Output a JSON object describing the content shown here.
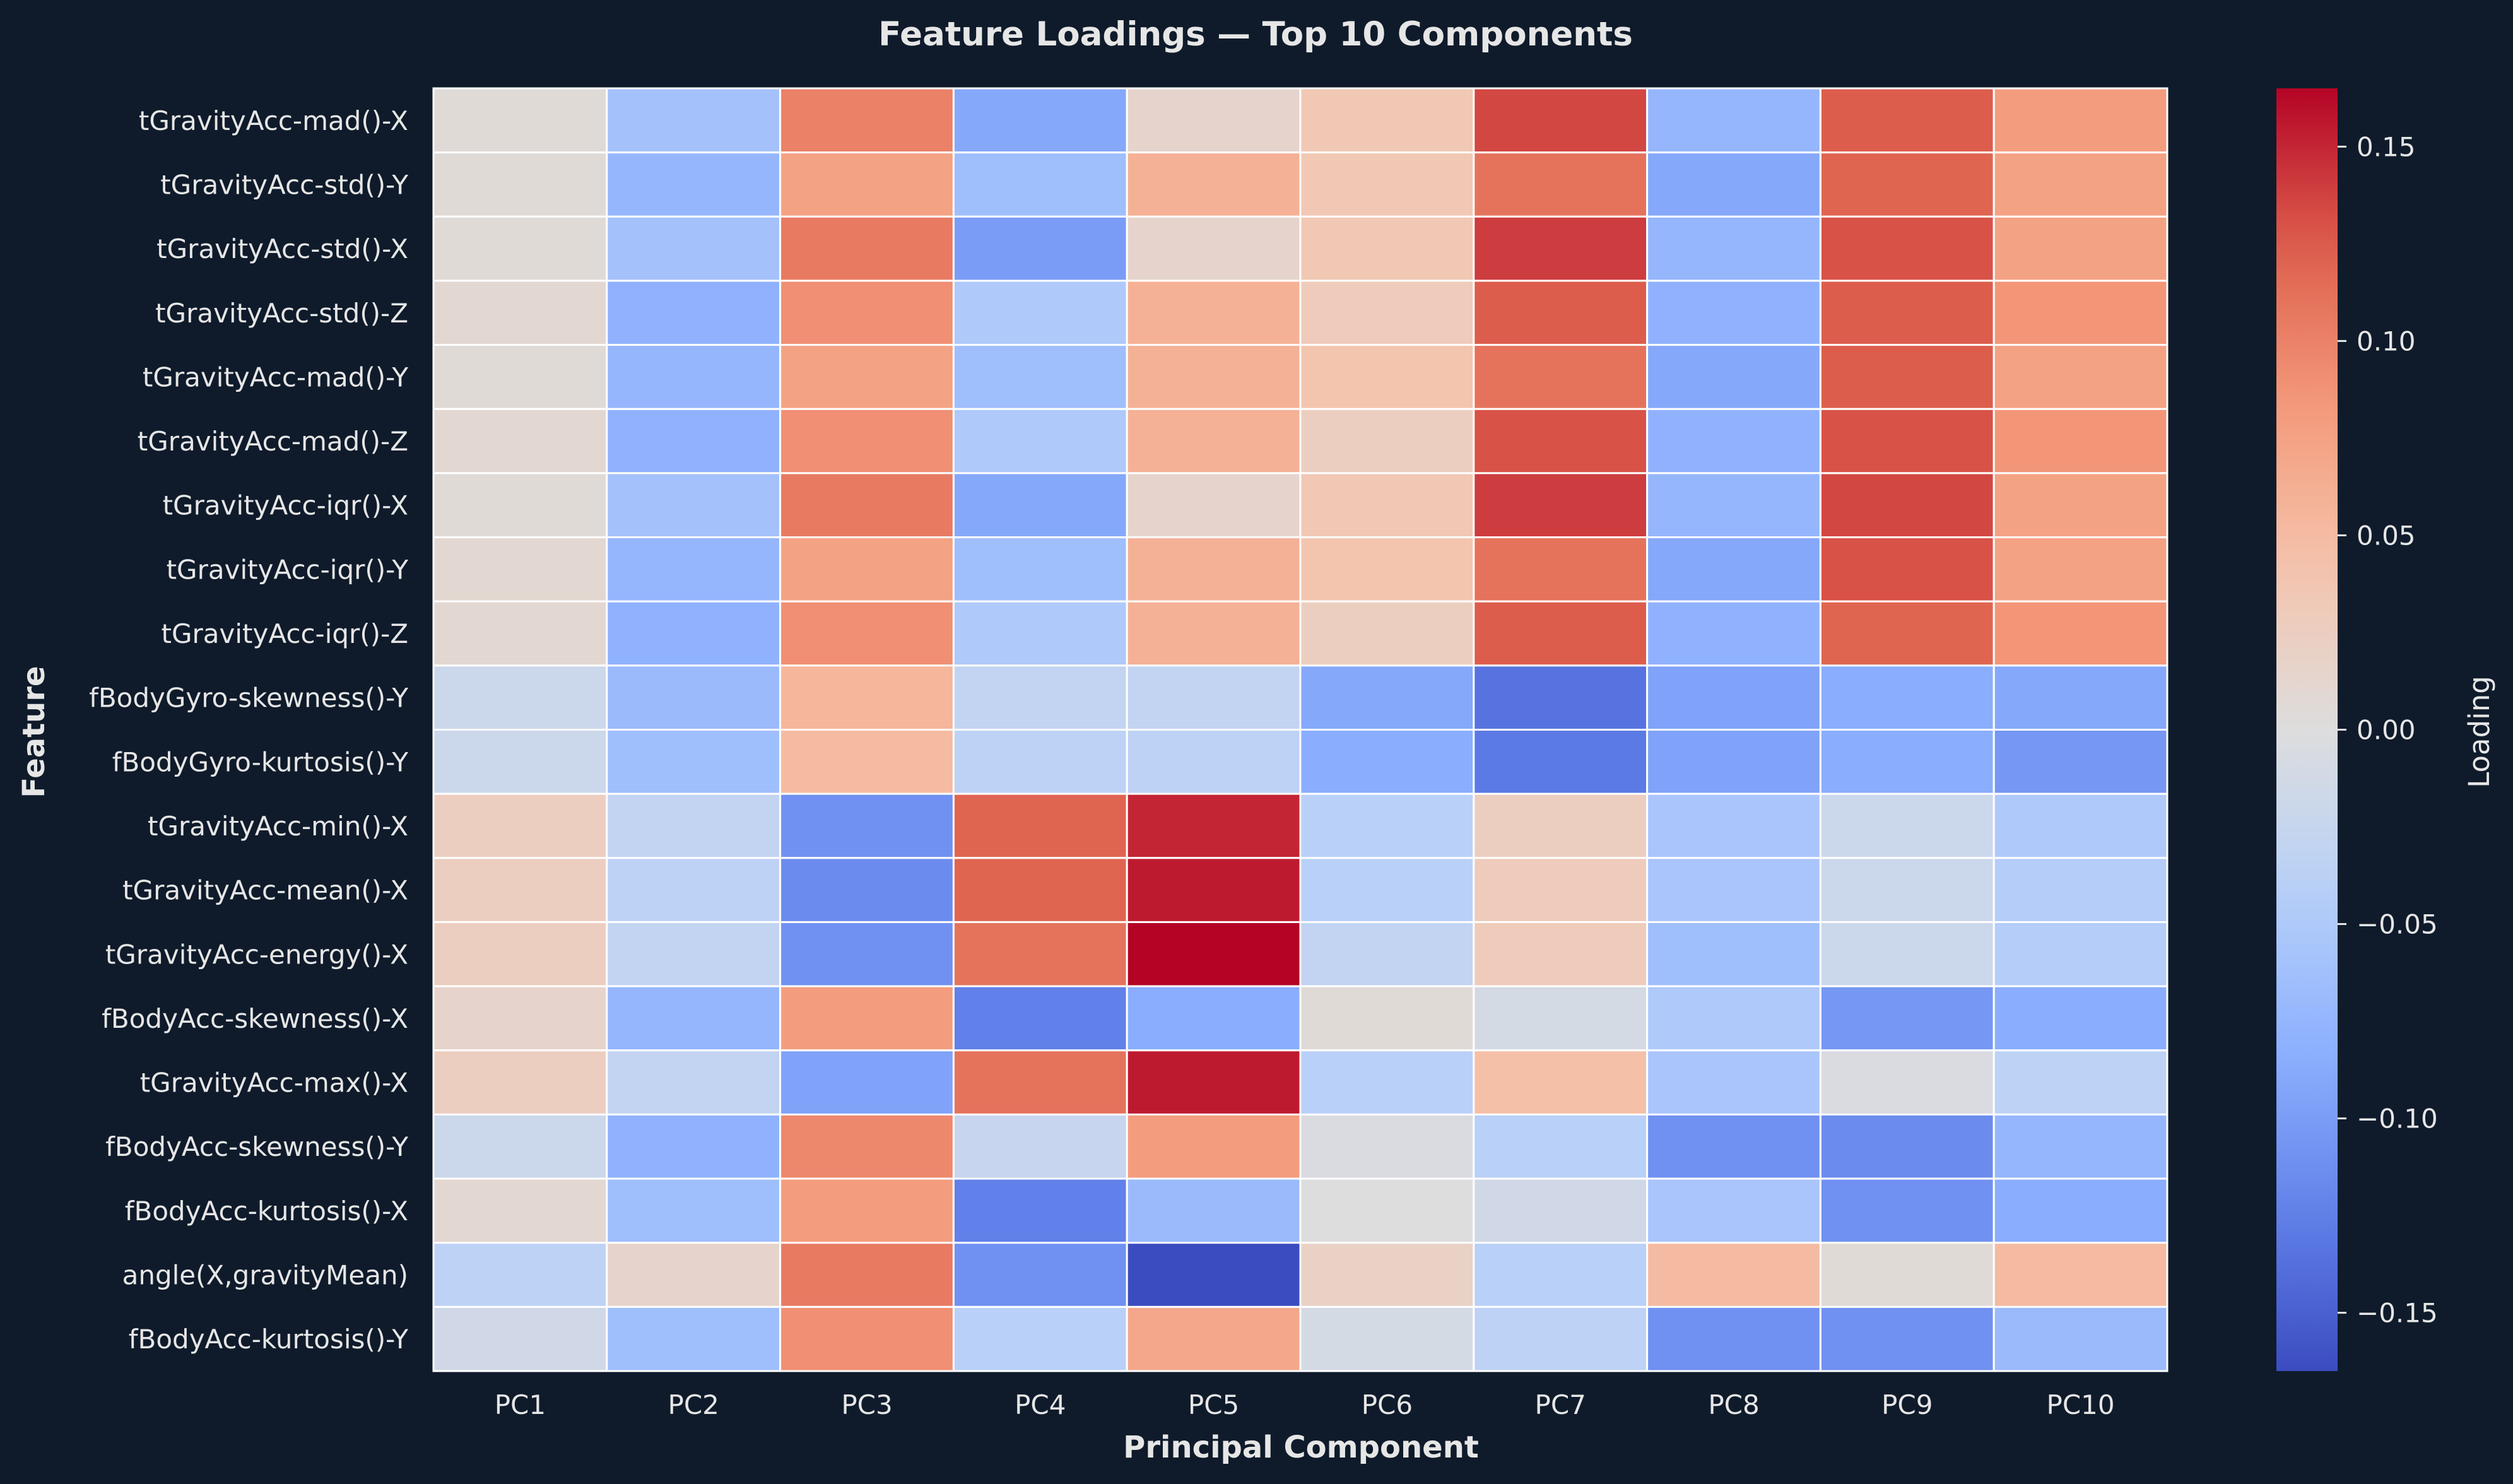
{
  "chart_data": {
    "type": "heatmap",
    "title": "Feature Loadings — Top 10 Components",
    "xlabel": "Principal Component",
    "ylabel": "Feature",
    "colorbar_label": "Loading",
    "colormap": "coolwarm",
    "vmin": -0.165,
    "vmax": 0.165,
    "colorbar_ticks": [
      0.15,
      0.1,
      0.05,
      0.0,
      -0.05,
      -0.1,
      -0.15
    ],
    "colorbar_tick_labels": [
      "0.15",
      "0.10",
      "0.05",
      "0.00",
      "−0.05",
      "−0.10",
      "−0.15"
    ],
    "columns": [
      "PC1",
      "PC2",
      "PC3",
      "PC4",
      "PC5",
      "PC6",
      "PC7",
      "PC8",
      "PC9",
      "PC10"
    ],
    "rows": [
      "tGravityAcc-mad()-X",
      "tGravityAcc-std()-Y",
      "tGravityAcc-std()-X",
      "tGravityAcc-std()-Z",
      "tGravityAcc-mad()-Y",
      "tGravityAcc-mad()-Z",
      "tGravityAcc-iqr()-X",
      "tGravityAcc-iqr()-Y",
      "tGravityAcc-iqr()-Z",
      "fBodyGyro-skewness()-Y",
      "fBodyGyro-kurtosis()-Y",
      "tGravityAcc-min()-X",
      "tGravityAcc-mean()-X",
      "tGravityAcc-energy()-X",
      "fBodyAcc-skewness()-X",
      "tGravityAcc-max()-X",
      "fBodyAcc-skewness()-Y",
      "fBodyAcc-kurtosis()-X",
      "angle(X,gravityMean)",
      "fBodyAcc-kurtosis()-Y"
    ],
    "values": [
      [
        0.005,
        -0.06,
        0.1,
        -0.09,
        0.015,
        0.035,
        0.135,
        -0.075,
        0.125,
        0.08
      ],
      [
        0.005,
        -0.075,
        0.075,
        -0.065,
        0.06,
        0.035,
        0.11,
        -0.09,
        0.12,
        0.075
      ],
      [
        0.005,
        -0.06,
        0.105,
        -0.1,
        0.015,
        0.035,
        0.14,
        -0.075,
        0.13,
        0.075
      ],
      [
        0.01,
        -0.08,
        0.09,
        -0.05,
        0.06,
        0.03,
        0.125,
        -0.08,
        0.125,
        0.085
      ],
      [
        0.005,
        -0.075,
        0.075,
        -0.065,
        0.06,
        0.04,
        0.11,
        -0.09,
        0.125,
        0.075
      ],
      [
        0.01,
        -0.08,
        0.09,
        -0.05,
        0.06,
        0.025,
        0.13,
        -0.08,
        0.13,
        0.085
      ],
      [
        0.005,
        -0.06,
        0.105,
        -0.09,
        0.015,
        0.035,
        0.14,
        -0.075,
        0.135,
        0.075
      ],
      [
        0.01,
        -0.075,
        0.075,
        -0.065,
        0.06,
        0.04,
        0.11,
        -0.09,
        0.13,
        0.075
      ],
      [
        0.01,
        -0.08,
        0.09,
        -0.05,
        0.06,
        0.025,
        0.125,
        -0.08,
        0.12,
        0.085
      ],
      [
        -0.02,
        -0.07,
        0.055,
        -0.03,
        -0.03,
        -0.09,
        -0.135,
        -0.095,
        -0.085,
        -0.09
      ],
      [
        -0.02,
        -0.065,
        0.05,
        -0.035,
        -0.035,
        -0.085,
        -0.13,
        -0.095,
        -0.085,
        -0.105
      ],
      [
        0.025,
        -0.03,
        -0.11,
        0.12,
        0.15,
        -0.04,
        0.025,
        -0.055,
        -0.02,
        -0.05
      ],
      [
        0.025,
        -0.035,
        -0.115,
        0.12,
        0.155,
        -0.04,
        0.03,
        -0.055,
        -0.02,
        -0.045
      ],
      [
        0.025,
        -0.03,
        -0.11,
        0.11,
        0.165,
        -0.03,
        0.03,
        -0.065,
        -0.02,
        -0.045
      ],
      [
        0.015,
        -0.075,
        0.08,
        -0.125,
        -0.085,
        0.005,
        -0.01,
        -0.05,
        -0.105,
        -0.085
      ],
      [
        0.025,
        -0.03,
        -0.095,
        0.11,
        0.155,
        -0.04,
        0.045,
        -0.055,
        -0.005,
        -0.035
      ],
      [
        -0.02,
        -0.08,
        0.095,
        -0.025,
        0.08,
        -0.005,
        -0.04,
        -0.11,
        -0.115,
        -0.075
      ],
      [
        0.01,
        -0.065,
        0.08,
        -0.125,
        -0.07,
        0.0,
        -0.015,
        -0.055,
        -0.11,
        -0.085
      ],
      [
        -0.035,
        0.015,
        0.105,
        -0.11,
        -0.165,
        0.02,
        -0.04,
        0.05,
        0.005,
        0.05
      ],
      [
        -0.015,
        -0.065,
        0.09,
        -0.04,
        0.07,
        -0.01,
        -0.035,
        -0.11,
        -0.11,
        -0.07
      ]
    ]
  }
}
